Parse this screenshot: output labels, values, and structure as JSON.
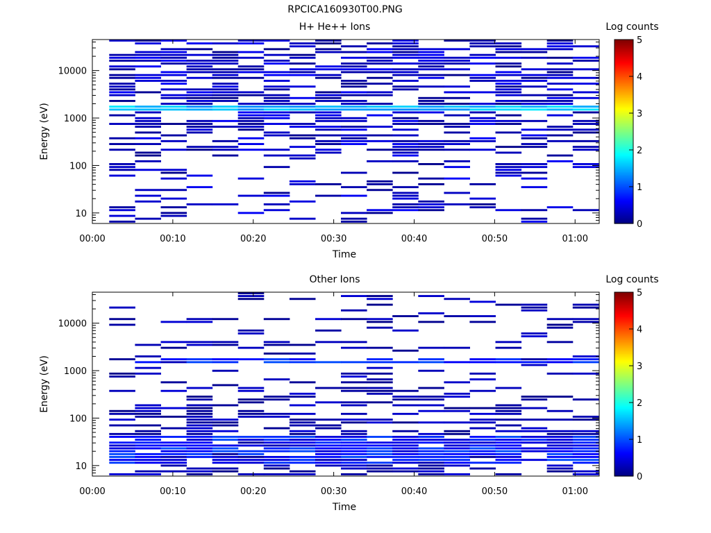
{
  "file_title": "RPCICA160930T00.PNG",
  "chart_data": [
    {
      "type": "heatmap",
      "title": "H+ He++ Ions",
      "xlabel": "Time",
      "ylabel": "Energy (eV)",
      "xlim_minutes": [
        0,
        63
      ],
      "x_tick_labels": [
        "00:00",
        "00:10",
        "00:20",
        "00:30",
        "00:40",
        "00:50",
        "01:00"
      ],
      "x_tick_minutes": [
        0,
        10,
        20,
        30,
        40,
        50,
        60
      ],
      "y_scale": "log",
      "ylim": [
        6,
        45000
      ],
      "y_tick_labels": [
        "10",
        "100",
        "1000",
        "10000"
      ],
      "y_tick_values": [
        10,
        100,
        1000,
        10000
      ],
      "time_bins_minutes": [
        2.1,
        5.3,
        8.5,
        11.7,
        14.9,
        18.1,
        21.3,
        24.5,
        27.7,
        30.9,
        34.1,
        37.3,
        40.5,
        43.7,
        46.9,
        50.1,
        53.3,
        56.5,
        59.7,
        62.9
      ],
      "colorbar": {
        "label": "Log counts",
        "min": 0,
        "max": 5,
        "tick_labels": [
          "0",
          "1",
          "2",
          "3",
          "4",
          "5"
        ]
      },
      "dominant_band": {
        "energy_eV": 1600,
        "log_counts": 1.8
      },
      "background_log_counts": "0.0-0.8 (sparse dark blue)",
      "seed": 11
    },
    {
      "type": "heatmap",
      "title": "Other Ions",
      "xlabel": "Time",
      "ylabel": "Energy (eV)",
      "xlim_minutes": [
        0,
        63
      ],
      "x_tick_labels": [
        "00:00",
        "00:10",
        "00:20",
        "00:30",
        "00:40",
        "00:50",
        "01:00"
      ],
      "x_tick_minutes": [
        0,
        10,
        20,
        30,
        40,
        50,
        60
      ],
      "y_scale": "log",
      "ylim": [
        6,
        45000
      ],
      "y_tick_labels": [
        "10",
        "100",
        "1000",
        "10000"
      ],
      "y_tick_values": [
        10,
        100,
        1000,
        10000
      ],
      "time_bins_minutes": [
        2.1,
        5.3,
        8.5,
        11.7,
        14.9,
        18.1,
        21.3,
        24.5,
        27.7,
        30.9,
        34.1,
        37.3,
        40.5,
        43.7,
        46.9,
        50.1,
        53.3,
        56.5,
        59.7,
        62.9
      ],
      "colorbar": {
        "label": "Log counts",
        "min": 0,
        "max": 5,
        "tick_labels": [
          "0",
          "1",
          "2",
          "3",
          "4",
          "5"
        ]
      },
      "dominant_band": {
        "energy_eV": 1600,
        "log_counts": 1.0
      },
      "low_energy_band": {
        "energy_eV_range": [
          10,
          40
        ],
        "log_counts": 0.9
      },
      "seed": 29
    }
  ]
}
